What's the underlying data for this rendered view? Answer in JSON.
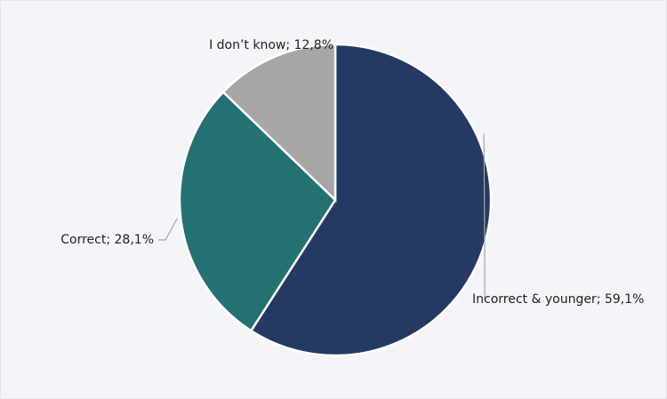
{
  "chart_data": {
    "type": "pie",
    "values": [
      59.1,
      28.1,
      12.8
    ],
    "value_labels": [
      "Incorrect & younger; 59,1%",
      "Correct; 28,1%",
      "I don’t know; 12,8%"
    ],
    "colors": [
      "#253a63",
      "#237173",
      "#a6a6a6"
    ],
    "start_angle": 0,
    "direction": "clockwise"
  }
}
